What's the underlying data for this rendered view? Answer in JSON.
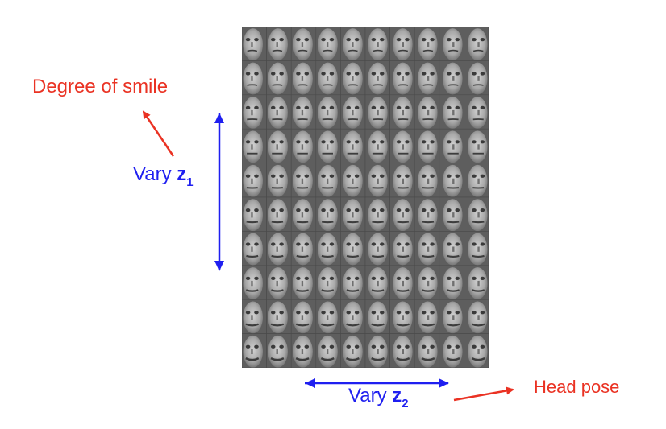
{
  "labels": {
    "smile": "Degree of smile",
    "head_pose": "Head pose",
    "vary_z1_prefix": "Vary ",
    "vary_z1_var": "z",
    "vary_z1_sub": "1",
    "vary_z2_prefix": "Vary ",
    "vary_z2_var": "z",
    "vary_z2_sub": "2"
  },
  "grid": {
    "rows": 10,
    "cols": 10
  },
  "colors": {
    "red": "#ea3223",
    "blue": "#1f1ff0"
  }
}
